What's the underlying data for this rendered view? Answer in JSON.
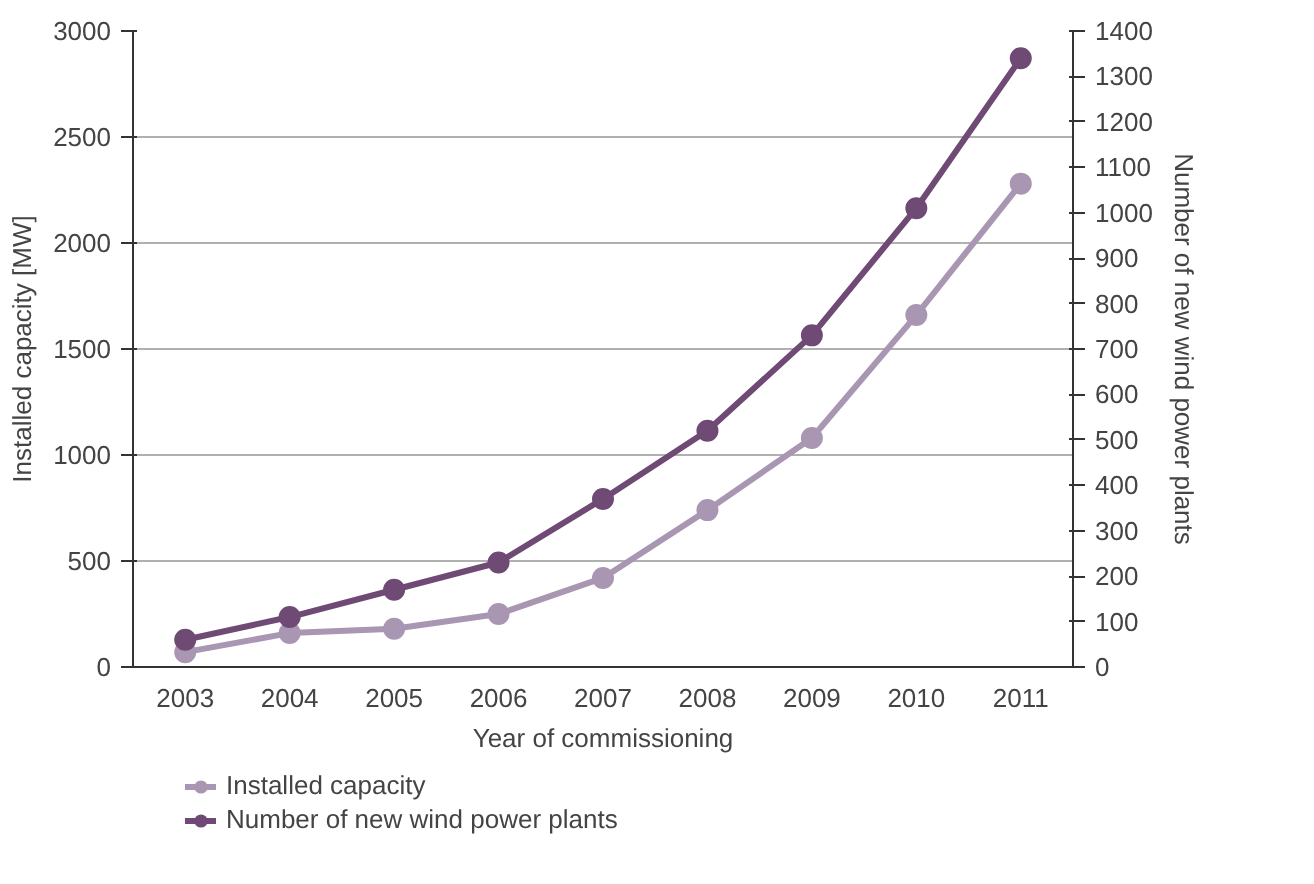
{
  "chart_data": {
    "type": "line",
    "xlabel": "Year of commissioning",
    "ylabel": "Installed capacity [MW]",
    "y2label": "Number of new wind power plants",
    "categories": [
      "2003",
      "2004",
      "2005",
      "2006",
      "2007",
      "2008",
      "2009",
      "2010",
      "2011"
    ],
    "series": [
      {
        "name": "Installed capacity",
        "color": "#a996b3",
        "values": [
          70,
          160,
          180,
          250,
          420,
          740,
          1080,
          1660,
          2280
        ]
      },
      {
        "name": "Number of new wind power plants",
        "color": "#6e4a75",
        "axis": "y2",
        "values": [
          60,
          110,
          170,
          230,
          370,
          520,
          730,
          1010,
          1340
        ]
      }
    ],
    "ylim": [
      0,
      3000
    ],
    "yticks": [
      0,
      500,
      1000,
      1500,
      2000,
      2500,
      3000
    ],
    "y2lim": [
      0,
      1400
    ],
    "y2ticks": [
      0,
      100,
      200,
      300,
      400,
      500,
      600,
      700,
      800,
      900,
      1000,
      1100,
      1200,
      1300,
      1400
    ],
    "grid": "y",
    "legend": "bottom",
    "marker": "circle",
    "line_style": "solid"
  }
}
